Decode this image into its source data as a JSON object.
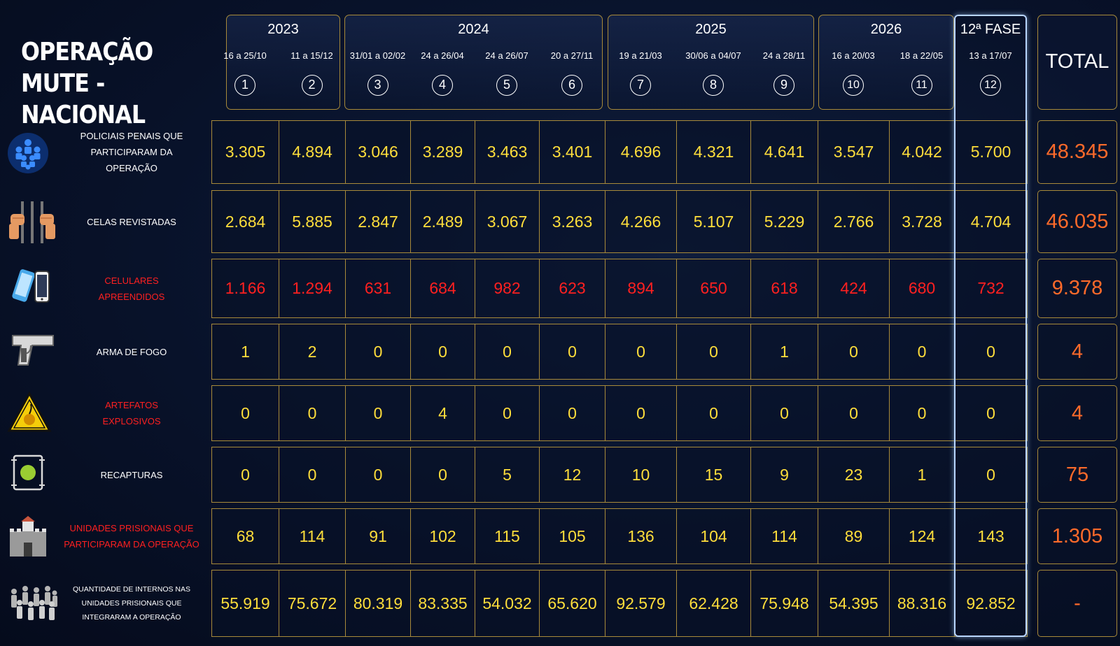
{
  "title_line1": "OPERAÇÃO",
  "title_line2": "MUTE - NACIONAL",
  "total_header": "TOTAL",
  "colors": {
    "gold_border": "#a88a3a",
    "value_yellow": "#ffde3b",
    "value_red": "#ff2020",
    "total_orange": "#ff6a2a",
    "highlight": "#b9d6ff"
  },
  "chart_data": {
    "type": "table",
    "year_groups": [
      {
        "label": "2023",
        "phases": [
          1,
          2
        ]
      },
      {
        "label": "2024",
        "phases": [
          3,
          4,
          5,
          6
        ]
      },
      {
        "label": "2025",
        "phases": [
          7,
          8,
          9
        ]
      },
      {
        "label": "2026",
        "phases": [
          10,
          11
        ]
      },
      {
        "label": "12ª FASE",
        "phases": [
          12
        ]
      }
    ],
    "phases": [
      {
        "number": "1",
        "dates": "16 a 25/10"
      },
      {
        "number": "2",
        "dates": "11 a 15/12"
      },
      {
        "number": "3",
        "dates": "31/01 a 02/02"
      },
      {
        "number": "4",
        "dates": "24 a 26/04"
      },
      {
        "number": "5",
        "dates": "24 a 26/07"
      },
      {
        "number": "6",
        "dates": "20 a 27/11"
      },
      {
        "number": "7",
        "dates": "19 a 21/03"
      },
      {
        "number": "8",
        "dates": "30/06 a 04/07"
      },
      {
        "number": "9",
        "dates": "24 a 28/11"
      },
      {
        "number": "10",
        "dates": "16 a 20/03"
      },
      {
        "number": "11",
        "dates": "18 a 22/05"
      },
      {
        "number": "12",
        "dates": "13 a 17/07"
      }
    ],
    "rows": [
      {
        "label_lines": [
          "POLICIAIS PENAIS QUE",
          "PARTICIPARAM DA",
          "OPERAÇÃO"
        ],
        "icon": "police-group-icon",
        "red_label": false,
        "red_values": false,
        "values": [
          "3.305",
          "4.894",
          "3.046",
          "3.289",
          "3.463",
          "3.401",
          "4.696",
          "4.321",
          "4.641",
          "3.547",
          "4.042",
          "5.700"
        ],
        "total": "48.345"
      },
      {
        "label_lines": [
          "CELAS REVISTADAS"
        ],
        "icon": "prison-bars-icon",
        "red_label": false,
        "red_values": false,
        "values": [
          "2.684",
          "5.885",
          "2.847",
          "2.489",
          "3.067",
          "3.263",
          "4.266",
          "5.107",
          "5.229",
          "2.766",
          "3.728",
          "4.704"
        ],
        "total": "46.035"
      },
      {
        "label_lines": [
          "CELULARES",
          "APREENDIDOS"
        ],
        "icon": "cellphones-icon",
        "red_label": true,
        "red_values": true,
        "values": [
          "1.166",
          "1.294",
          "631",
          "684",
          "982",
          "623",
          "894",
          "650",
          "618",
          "424",
          "680",
          "732"
        ],
        "total": "9.378"
      },
      {
        "label_lines": [
          "ARMA DE FOGO"
        ],
        "icon": "pistol-icon",
        "red_label": false,
        "red_values": false,
        "values": [
          "1",
          "2",
          "0",
          "0",
          "0",
          "0",
          "0",
          "0",
          "1",
          "0",
          "0",
          "0"
        ],
        "total": "4"
      },
      {
        "label_lines": [
          "ARTEFATOS",
          "EXPLOSIVOS"
        ],
        "icon": "explosive-warning-icon",
        "red_label": true,
        "red_values": false,
        "values": [
          "0",
          "0",
          "0",
          "4",
          "0",
          "0",
          "0",
          "0",
          "0",
          "0",
          "0",
          "0"
        ],
        "total": "4"
      },
      {
        "label_lines": [
          "RECAPTURAS"
        ],
        "icon": "recapture-icon",
        "red_label": false,
        "red_values": false,
        "values": [
          "0",
          "0",
          "0",
          "0",
          "5",
          "12",
          "10",
          "15",
          "9",
          "23",
          "1",
          "0"
        ],
        "total": "75"
      },
      {
        "label_lines": [
          "UNIDADES PRISIONAIS QUE",
          "PARTICIPARAM DA OPERAÇÃO"
        ],
        "icon": "prison-building-icon",
        "red_label": true,
        "red_values": false,
        "values": [
          "68",
          "114",
          "91",
          "102",
          "115",
          "105",
          "136",
          "104",
          "114",
          "89",
          "124",
          "143"
        ],
        "total": "1.305"
      },
      {
        "label_lines": [
          "QUANTIDADE DE INTERNOS NAS",
          "UNIDADES PRISIONAIS QUE",
          "INTEGRARAM A OPERAÇÃO"
        ],
        "icon": "inmates-crowd-icon",
        "red_label": false,
        "red_values": false,
        "values": [
          "55.919",
          "75.672",
          "80.319",
          "83.335",
          "54.032",
          "65.620",
          "92.579",
          "62.428",
          "75.948",
          "54.395",
          "88.316",
          "92.852"
        ],
        "total": "-"
      }
    ]
  }
}
